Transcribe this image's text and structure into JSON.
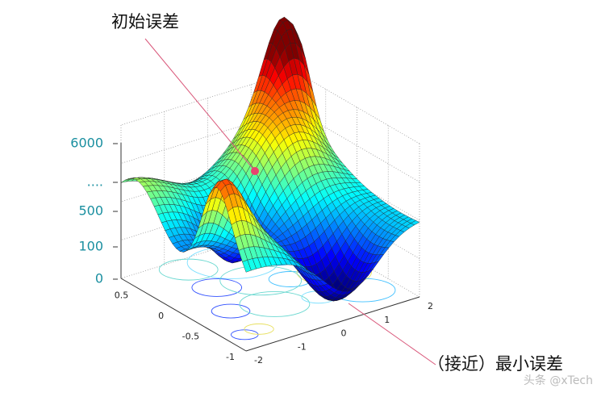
{
  "figure": {
    "annotations": {
      "start": "初始误差",
      "end": "（接近）最小误差"
    },
    "z_ticks": [
      6000,
      "....",
      500,
      100,
      0
    ],
    "x_ticks": [
      0.5,
      0,
      -0.5,
      -1
    ],
    "y_ticks": [
      -2,
      -1,
      0,
      1,
      2
    ],
    "watermark": "头条 @xTech"
  }
}
